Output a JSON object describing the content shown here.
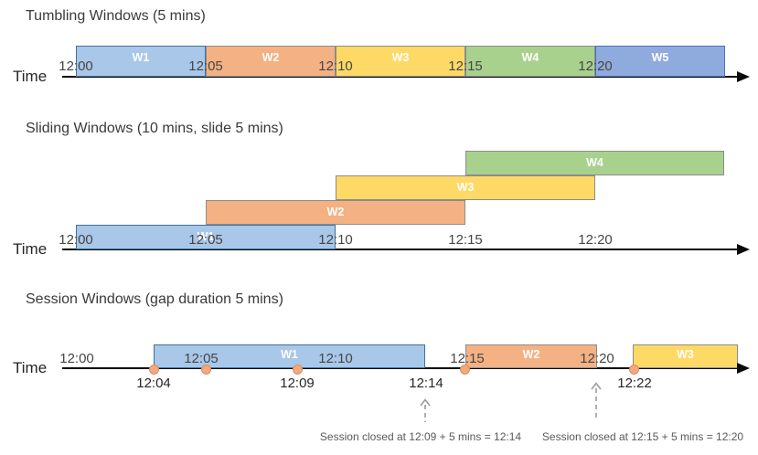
{
  "figure": {
    "topic": "Stream processing window types timeline diagram"
  },
  "colors": {
    "window_blue": "#A9C7E8",
    "window_blue_border": "#41719C",
    "window_orange": "#F4B183",
    "window_yellow": "#FFD966",
    "window_green": "#A9D18E",
    "window_periwinkle": "#8FAADC",
    "window_periwinkle_border": "#4472C4",
    "warm_border": "#8C8C8C",
    "event_dot_fill": "#F3A97E",
    "event_dot_border": "#DD8E62",
    "axis_black": "#0A0A0A",
    "tick_text": "#464646",
    "annotation_text": "#595959",
    "arrow_gray": "#9B9B9B"
  },
  "sections": [
    {
      "title": "Tumbling Windows (5 mins)",
      "time_label": "Time",
      "windows": [
        {
          "label": "W1",
          "start": "12:00",
          "end": "12:05",
          "color": "blue"
        },
        {
          "label": "W2",
          "start": "12:05",
          "end": "12:10",
          "color": "orange"
        },
        {
          "label": "W3",
          "start": "12:10",
          "end": "12:15",
          "color": "yellow"
        },
        {
          "label": "W4",
          "start": "12:15",
          "end": "12:20",
          "color": "green"
        },
        {
          "label": "W5",
          "start": "12:20",
          "end": "12:25",
          "color": "periwinkle"
        }
      ],
      "ticks": [
        "12:00",
        "12:05",
        "12:10",
        "12:15",
        "12:20"
      ]
    },
    {
      "title": "Sliding Windows (10 mins, slide 5 mins)",
      "time_label": "Time",
      "windows": [
        {
          "label": "W1",
          "start": "12:00",
          "end": "12:10",
          "color": "blue"
        },
        {
          "label": "W2",
          "start": "12:05",
          "end": "12:15",
          "color": "orange"
        },
        {
          "label": "W3",
          "start": "12:10",
          "end": "12:20",
          "color": "yellow"
        },
        {
          "label": "W4",
          "start": "12:15",
          "end": "12:25",
          "color": "green"
        }
      ],
      "ticks": [
        "12:00",
        "12:05",
        "12:10",
        "12:15",
        "12:20"
      ]
    },
    {
      "title": "Session Windows (gap duration 5 mins)",
      "time_label": "Time",
      "windows": [
        {
          "label": "W1",
          "start": "12:04",
          "end": "12:14",
          "color": "blue"
        },
        {
          "label": "W2",
          "start": "12:15",
          "end": "12:20",
          "color": "orange"
        },
        {
          "label": "W3",
          "start": "12:22",
          "end": "",
          "color": "yellow"
        }
      ],
      "ticks": [
        "12:00",
        "12:05",
        "12:10",
        "12:15",
        "12:20"
      ],
      "event_labels": [
        "12:04",
        "12:09",
        "12:14",
        "12:22"
      ],
      "annotations": [
        "Session closed at 12:09 + 5 mins = 12:14",
        "Session closed at 12:15 + 5 mins = 12:20"
      ]
    }
  ]
}
